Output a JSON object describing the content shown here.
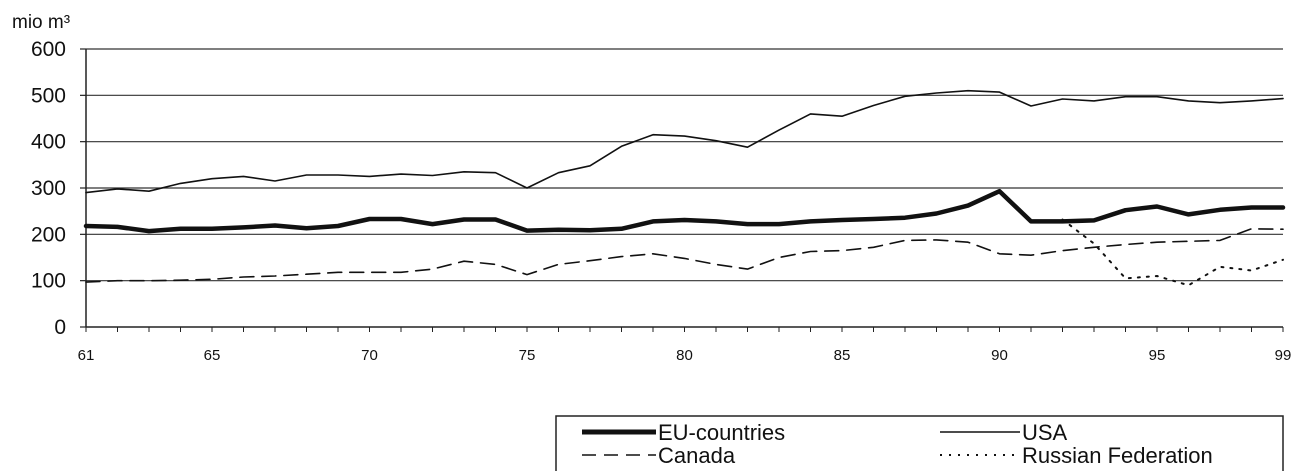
{
  "chart_data": {
    "type": "line",
    "unit_label": "mio m³",
    "ylim": [
      0,
      600
    ],
    "yticks": [
      0,
      100,
      200,
      300,
      400,
      500,
      600
    ],
    "xlim": [
      1961,
      1999
    ],
    "xticks": [
      61,
      65,
      70,
      75,
      80,
      85,
      90,
      95,
      99
    ],
    "grid": "horizontal",
    "legend_position": "bottom-right",
    "x": [
      1961,
      1962,
      1963,
      1964,
      1965,
      1966,
      1967,
      1968,
      1969,
      1970,
      1971,
      1972,
      1973,
      1974,
      1975,
      1976,
      1977,
      1978,
      1979,
      1980,
      1981,
      1982,
      1983,
      1984,
      1985,
      1986,
      1987,
      1988,
      1989,
      1990,
      1991,
      1992,
      1993,
      1994,
      1995,
      1996,
      1997,
      1998,
      1999
    ],
    "series": [
      {
        "name": "EU-countries",
        "style": "thick",
        "color": "#111111",
        "values": [
          218,
          216,
          207,
          212,
          212,
          215,
          219,
          213,
          218,
          233,
          233,
          222,
          232,
          232,
          208,
          210,
          209,
          212,
          228,
          231,
          228,
          222,
          222,
          228,
          231,
          233,
          236,
          245,
          262,
          293,
          228,
          228,
          230,
          252,
          260,
          243,
          253,
          258,
          258
        ]
      },
      {
        "name": "USA",
        "style": "thin",
        "color": "#111111",
        "values": [
          290,
          298,
          293,
          310,
          320,
          325,
          315,
          328,
          328,
          325,
          330,
          327,
          335,
          333,
          300,
          333,
          348,
          390,
          415,
          412,
          402,
          388,
          425,
          460,
          455,
          478,
          498,
          505,
          510,
          507,
          477,
          492,
          488,
          497,
          497,
          488,
          484,
          488,
          493
        ]
      },
      {
        "name": "Canada",
        "style": "dashed",
        "color": "#111111",
        "values": [
          97,
          100,
          100,
          101,
          103,
          108,
          110,
          114,
          118,
          118,
          118,
          125,
          142,
          135,
          113,
          135,
          143,
          152,
          158,
          148,
          135,
          125,
          150,
          163,
          165,
          172,
          187,
          188,
          183,
          158,
          155,
          165,
          172,
          178,
          183,
          185,
          187,
          212,
          211
        ]
      },
      {
        "name": "Russian Federation",
        "style": "dotted",
        "color": "#111111",
        "x": [
          1992,
          1993,
          1994,
          1995,
          1996,
          1997,
          1998,
          1999
        ],
        "values": [
          232,
          180,
          105,
          110,
          90,
          130,
          122,
          145
        ]
      }
    ]
  }
}
